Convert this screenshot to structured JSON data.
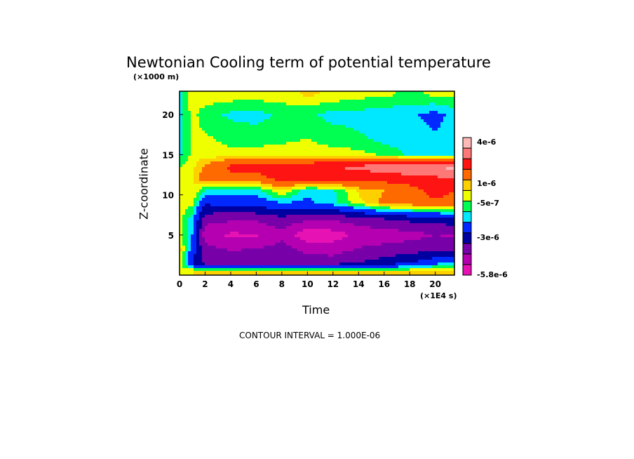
{
  "chart_data": {
    "type": "heatmap",
    "subtype": "filled-contour",
    "title": "Newtonian Cooling term of potential temperature",
    "xlabel": "Time",
    "ylabel": "Z-coordinate",
    "x_unit_label": "(×1E4 s)",
    "y_unit_label": "(×1000 m)",
    "xlim": [
      0,
      21.5
    ],
    "ylim": [
      0,
      22.9
    ],
    "xticks": [
      "0",
      "2",
      "4",
      "6",
      "8",
      "10",
      "12",
      "14",
      "16",
      "18",
      "20"
    ],
    "yticks": [
      "5",
      "10",
      "15",
      "20"
    ],
    "contour_interval_label": "CONTOUR INTERVAL = 1.000E-06",
    "colorbar": {
      "labels": [
        "4e-6",
        "1e-6",
        "-5e-7",
        "-3e-6",
        "-5.8e-6"
      ],
      "levels": [
        -5e-06,
        -4e-06,
        -3e-06,
        -2e-06,
        -1e-06,
        -5e-07,
        0,
        5e-07,
        1e-06,
        2e-06,
        3e-06,
        4e-06
      ],
      "colors": [
        "#e612b4",
        "#b400b0",
        "#7800a8",
        "#0000a0",
        "#0028ff",
        "#00e8ff",
        "#00ff50",
        "#f0ff00",
        "#ffd000",
        "#ff6a00",
        "#ff1414",
        "#ff7878",
        "#ffb8b8"
      ]
    },
    "x": [
      0,
      1,
      2,
      4,
      6,
      8,
      10,
      12,
      14,
      16,
      18,
      20,
      21.5
    ],
    "z": [
      0.5,
      1.5,
      3,
      5,
      7,
      9,
      10.5,
      12,
      13.5,
      15,
      17,
      20,
      22.5
    ],
    "values": [
      [
        3e-07,
        5e-07,
        5e-07,
        5e-07,
        5e-07,
        5e-07,
        5e-07,
        5e-07,
        5e-07,
        5e-07,
        5e-07,
        5e-07,
        8e-07
      ],
      [
        3e-07,
        -2e-06,
        -3.6e-06,
        -3.6e-06,
        -3.5e-06,
        -3.4e-06,
        -3.6e-06,
        -3.5e-06,
        -3e-06,
        -2.5e-06,
        -2e-06,
        -1.2e-06,
        -8e-07
      ],
      [
        8e-07,
        -1.5e-06,
        -3.5e-06,
        -4e-06,
        -3.8e-06,
        -3.5e-06,
        -4.2e-06,
        -4.3e-06,
        -3.8e-06,
        -3.5e-06,
        -3.3e-06,
        -3e-06,
        -3e-06
      ],
      [
        4e-07,
        -1e-06,
        -4.6e-06,
        -5.2e-06,
        -5.1e-06,
        -4.3e-06,
        -5.7e-06,
        -5.5e-06,
        -4.8e-06,
        -4.6e-06,
        -4.4e-06,
        -4e-06,
        -4.2e-06
      ],
      [
        3e-07,
        -8e-07,
        -3.6e-06,
        -3.8e-06,
        -3.8e-06,
        -3.3e-06,
        -3.8e-06,
        -3.8e-06,
        -3.4e-06,
        -3e-06,
        -2.7e-06,
        -2.5e-06,
        -2.3e-06
      ],
      [
        3e-07,
        2e-07,
        -1.8e-06,
        -1.6e-06,
        -1.5e-06,
        -1e-06,
        -1.2e-06,
        -6e-07,
        3e-07,
        1.2e-06,
        1.5e-06,
        1.8e-06,
        1.6e-06
      ],
      [
        2e-07,
        5e-07,
        -6e-07,
        -8e-07,
        -7e-07,
        5e-07,
        -8e-07,
        -6e-07,
        6e-07,
        1e-06,
        1.5e-06,
        2.5e-06,
        2e-06
      ],
      [
        1e-07,
        5e-07,
        1.5e-06,
        1.8e-06,
        1.6e-06,
        2.3e-06,
        2.5e-06,
        2.5e-06,
        2.3e-06,
        2.4e-06,
        2.6e-06,
        2.8e-06,
        3e-06
      ],
      [
        0,
        3e-07,
        1.2e-06,
        2.2e-06,
        2.3e-06,
        2.6e-06,
        2.8e-06,
        3e-06,
        3.2e-06,
        3.6e-06,
        3.8e-06,
        4e-06,
        4.3e-06
      ],
      [
        -7e-07,
        2e-07,
        2e-07,
        2e-07,
        2e-07,
        2e-07,
        2e-07,
        2e-07,
        2e-07,
        -1e-07,
        -6e-07,
        -7e-07,
        -7e-07
      ],
      [
        -7e-07,
        1e-07,
        1e-07,
        -2e-07,
        -2e-07,
        -1e-07,
        0,
        -2e-07,
        -4e-07,
        -7e-07,
        -8e-07,
        -9e-07,
        -8e-07
      ],
      [
        -7e-07,
        2e-07,
        -3e-07,
        -6e-07,
        -7e-07,
        -4e-07,
        -4e-07,
        -7e-07,
        -7e-07,
        -8e-07,
        -9e-07,
        -1.2e-06,
        -8e-07
      ],
      [
        -7e-07,
        3e-07,
        4e-07,
        3e-07,
        3e-07,
        3e-07,
        6e-07,
        4e-07,
        2e-07,
        1e-07,
        -1e-07,
        1e-07,
        2e-07
      ]
    ]
  }
}
